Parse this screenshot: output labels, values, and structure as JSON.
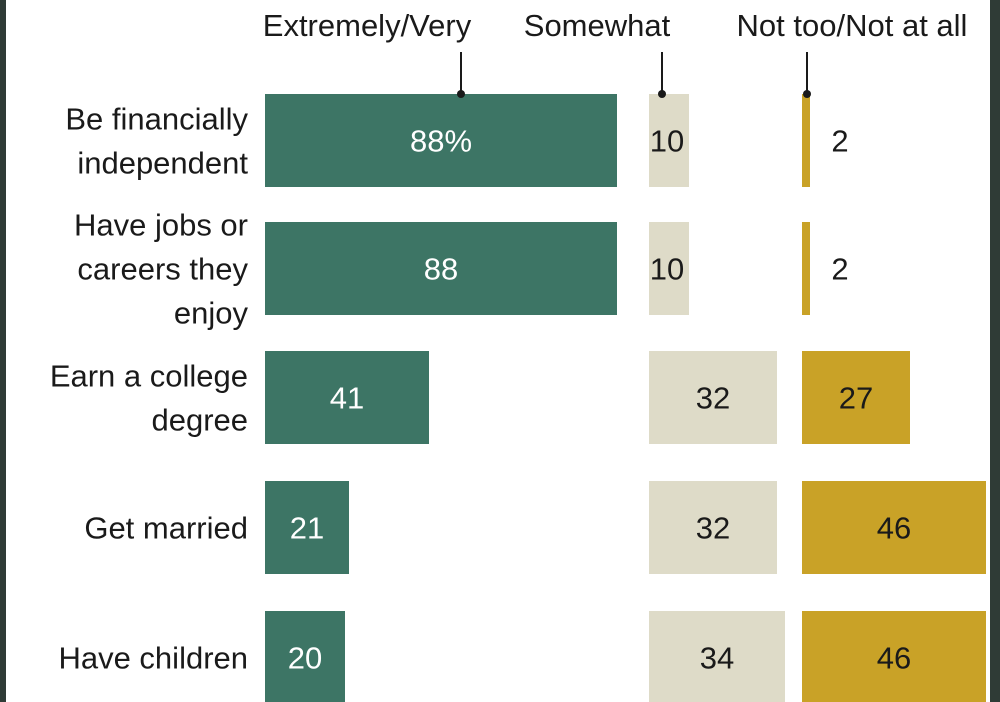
{
  "chart_data": {
    "type": "bar",
    "layout": "stacked-columns-horizontal",
    "categories": [
      "Be financially\nindependent",
      "Have jobs or\ncareers they\nenjoy",
      "Earn a college\ndegree",
      "Get married",
      "Have children"
    ],
    "series": [
      {
        "name": "Extremely/Very",
        "values": [
          88,
          88,
          41,
          21,
          20
        ]
      },
      {
        "name": "Somewhat",
        "values": [
          10,
          10,
          32,
          32,
          34
        ]
      },
      {
        "name": "Not too/Not at all",
        "values": [
          2,
          2,
          27,
          46,
          46
        ]
      }
    ],
    "value_labels": [
      [
        "88%",
        "88",
        "41",
        "21",
        "20"
      ],
      [
        "10",
        "10",
        "32",
        "32",
        "34"
      ],
      [
        "2",
        "2",
        "27",
        "46",
        "46"
      ]
    ],
    "xlim": [
      0,
      100
    ],
    "legend": "top",
    "grid": false
  },
  "colors": {
    "extremely_very": "#3d7565",
    "somewhat": "#dedbc8",
    "not_too": "#c9a227",
    "background": "#ffffff",
    "frame": "#2f3b36",
    "text_dark": "#1a1a1a",
    "text_light": "#ffffff"
  }
}
